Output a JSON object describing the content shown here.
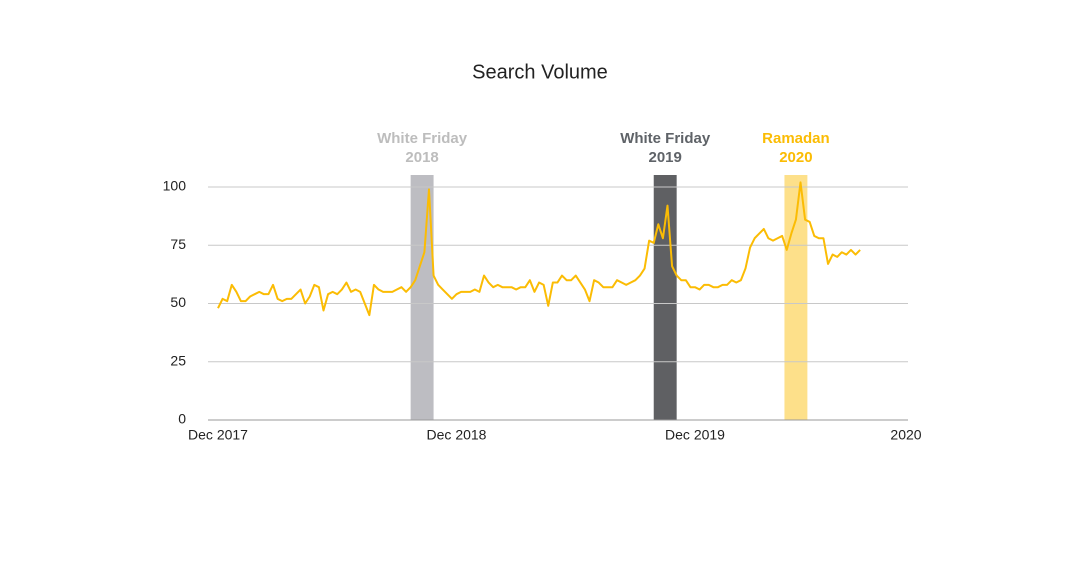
{
  "chart_data": {
    "type": "line",
    "title": "Search Volume",
    "categories": [
      "Dec 2017",
      null,
      null,
      null,
      null,
      null,
      null,
      null,
      null,
      null,
      null,
      null,
      null,
      null,
      null,
      null,
      null,
      null,
      null,
      null,
      null,
      null,
      null,
      null,
      null,
      null,
      null,
      null,
      null,
      null,
      null,
      null,
      null,
      null,
      null,
      null,
      null,
      null,
      null,
      null,
      null,
      null,
      null,
      null,
      null,
      null,
      null,
      null,
      null,
      null,
      null,
      null,
      "Dec 2018",
      null,
      null,
      null,
      null,
      null,
      null,
      null,
      null,
      null,
      null,
      null,
      null,
      null,
      null,
      null,
      null,
      null,
      null,
      null,
      null,
      null,
      null,
      null,
      null,
      null,
      null,
      null,
      null,
      null,
      null,
      null,
      null,
      null,
      null,
      null,
      null,
      null,
      null,
      null,
      null,
      null,
      null,
      null,
      null,
      null,
      null,
      null,
      null,
      null,
      null,
      null,
      "Dec 2019",
      null,
      null,
      null,
      null,
      null,
      null,
      null,
      null,
      null,
      null,
      null,
      null,
      null,
      null,
      null,
      null,
      null,
      null,
      null,
      null,
      null,
      null,
      null,
      null,
      null,
      null,
      null,
      null,
      null,
      null,
      null,
      null,
      null,
      null,
      null,
      null,
      null,
      null,
      null,
      null,
      null,
      null,
      null,
      null,
      null,
      "2020"
    ],
    "values": [
      48,
      52,
      51,
      58,
      55,
      51,
      51,
      53,
      54,
      55,
      54,
      54,
      58,
      52,
      51,
      52,
      52,
      54,
      56,
      50,
      53,
      58,
      57,
      47,
      54,
      55,
      54,
      56,
      59,
      55,
      56,
      55,
      50,
      45,
      58,
      56,
      55,
      55,
      55,
      56,
      57,
      55,
      57,
      60,
      66,
      72,
      99,
      62,
      58,
      56,
      54,
      52,
      54,
      55,
      55,
      55,
      56,
      55,
      62,
      59,
      57,
      58,
      57,
      57,
      57,
      56,
      57,
      57,
      60,
      55,
      59,
      58,
      49,
      59,
      59,
      62,
      60,
      60,
      62,
      59,
      56,
      51,
      60,
      59,
      57,
      57,
      57,
      60,
      59,
      58,
      59,
      60,
      62,
      65,
      77,
      76,
      84,
      78,
      92,
      66,
      62,
      60,
      60,
      57,
      57,
      56,
      58,
      58,
      57,
      57,
      58,
      58,
      60,
      59,
      60,
      65,
      74,
      78,
      80,
      82,
      78,
      77,
      78,
      79,
      73,
      80,
      86,
      102,
      86,
      85,
      79,
      78,
      78,
      67,
      71,
      70,
      72,
      71,
      73,
      71,
      73,
      null,
      null,
      null,
      null,
      null,
      null,
      null,
      null,
      null,
      null
    ],
    "color": "#fbbc04",
    "ylim": [
      0,
      100
    ],
    "yticks": [
      0,
      25,
      50,
      75,
      100
    ],
    "grid": true,
    "annotations": [
      {
        "lines": [
          "White Friday",
          "2018"
        ],
        "from": 42,
        "to": 47,
        "color": "#bdbdc2",
        "text_color": "#bdbdbd"
      },
      {
        "lines": [
          "White Friday",
          "2019"
        ],
        "from": 95,
        "to": 100,
        "color": "#5f6063",
        "text_color": "#5f6368"
      },
      {
        "lines": [
          "Ramadan",
          "2020"
        ],
        "from": 123.5,
        "to": 128.5,
        "color": "#fde08a",
        "text_color": "#fbbc04"
      }
    ]
  }
}
